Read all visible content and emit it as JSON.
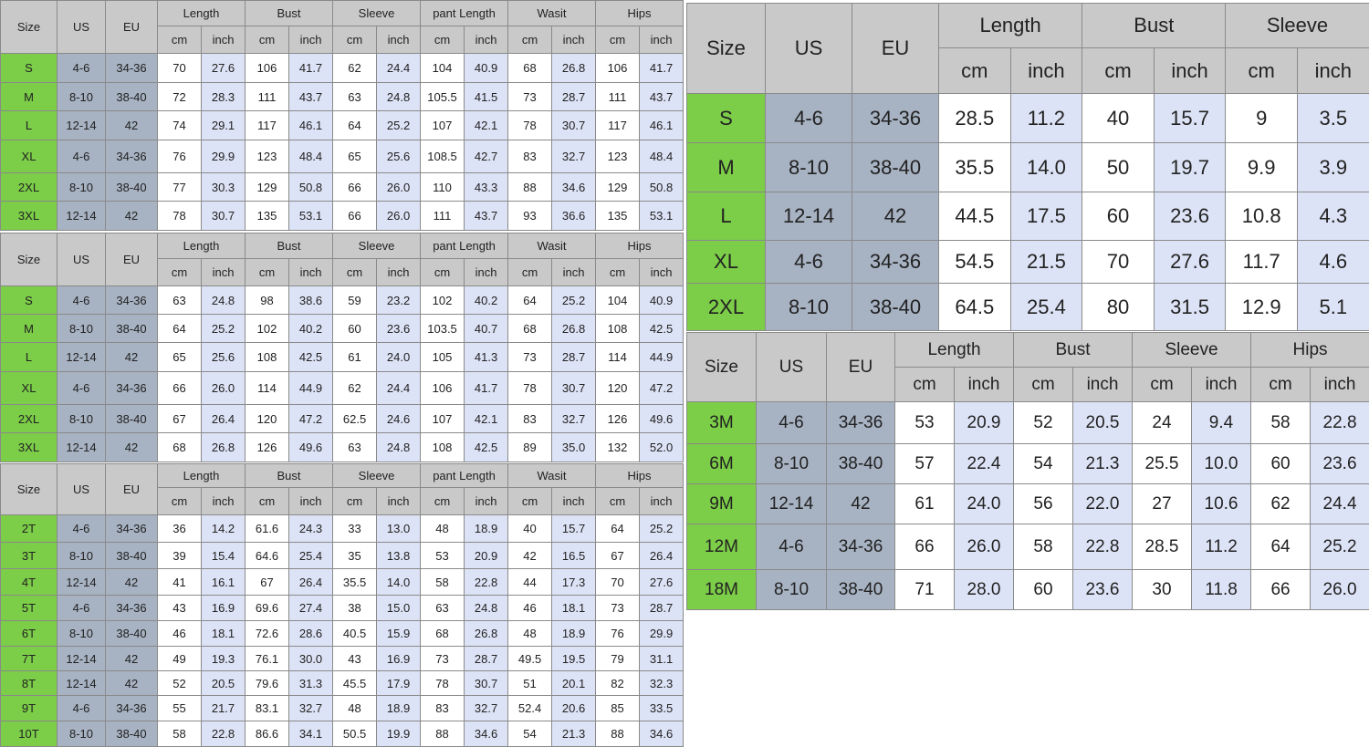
{
  "colors": {
    "header": "#c9c9c9",
    "size_column": "#7ccd48",
    "us_eu_columns": "#a7b2c2",
    "inch_columns": "#dde3f6"
  },
  "tables": [
    {
      "id": "adult-set-1",
      "head": {
        "size": "Size",
        "us": "US",
        "eu": "EU",
        "groups": [
          "Length",
          "Bust",
          "Sleeve",
          "pant Length",
          "Wasit",
          "Hips"
        ],
        "cm": "cm",
        "inch": "inch"
      },
      "rows": [
        [
          "S",
          "4-6",
          "34-36",
          "70",
          "27.6",
          "106",
          "41.7",
          "62",
          "24.4",
          "104",
          "40.9",
          "68",
          "26.8",
          "106",
          "41.7"
        ],
        [
          "M",
          "8-10",
          "38-40",
          "72",
          "28.3",
          "111",
          "43.7",
          "63",
          "24.8",
          "105.5",
          "41.5",
          "73",
          "28.7",
          "111",
          "43.7"
        ],
        [
          "L",
          "12-14",
          "42",
          "74",
          "29.1",
          "117",
          "46.1",
          "64",
          "25.2",
          "107",
          "42.1",
          "78",
          "30.7",
          "117",
          "46.1"
        ],
        [
          "XL",
          "4-6",
          "34-36",
          "76",
          "29.9",
          "123",
          "48.4",
          "65",
          "25.6",
          "108.5",
          "42.7",
          "83",
          "32.7",
          "123",
          "48.4"
        ],
        [
          "2XL",
          "8-10",
          "38-40",
          "77",
          "30.3",
          "129",
          "50.8",
          "66",
          "26.0",
          "110",
          "43.3",
          "88",
          "34.6",
          "129",
          "50.8"
        ],
        [
          "3XL",
          "12-14",
          "42",
          "78",
          "30.7",
          "135",
          "53.1",
          "66",
          "26.0",
          "111",
          "43.7",
          "93",
          "36.6",
          "135",
          "53.1"
        ]
      ]
    },
    {
      "id": "adult-set-2",
      "head": {
        "size": "Size",
        "us": "US",
        "eu": "EU",
        "groups": [
          "Length",
          "Bust",
          "Sleeve",
          "pant Length",
          "Wasit",
          "Hips"
        ],
        "cm": "cm",
        "inch": "inch"
      },
      "rows": [
        [
          "S",
          "4-6",
          "34-36",
          "63",
          "24.8",
          "98",
          "38.6",
          "59",
          "23.2",
          "102",
          "40.2",
          "64",
          "25.2",
          "104",
          "40.9"
        ],
        [
          "M",
          "8-10",
          "38-40",
          "64",
          "25.2",
          "102",
          "40.2",
          "60",
          "23.6",
          "103.5",
          "40.7",
          "68",
          "26.8",
          "108",
          "42.5"
        ],
        [
          "L",
          "12-14",
          "42",
          "65",
          "25.6",
          "108",
          "42.5",
          "61",
          "24.0",
          "105",
          "41.3",
          "73",
          "28.7",
          "114",
          "44.9"
        ],
        [
          "XL",
          "4-6",
          "34-36",
          "66",
          "26.0",
          "114",
          "44.9",
          "62",
          "24.4",
          "106",
          "41.7",
          "78",
          "30.7",
          "120",
          "47.2"
        ],
        [
          "2XL",
          "8-10",
          "38-40",
          "67",
          "26.4",
          "120",
          "47.2",
          "62.5",
          "24.6",
          "107",
          "42.1",
          "83",
          "32.7",
          "126",
          "49.6"
        ],
        [
          "3XL",
          "12-14",
          "42",
          "68",
          "26.8",
          "126",
          "49.6",
          "63",
          "24.8",
          "108",
          "42.5",
          "89",
          "35.0",
          "132",
          "52.0"
        ]
      ]
    },
    {
      "id": "kids-set",
      "head": {
        "size": "Size",
        "us": "US",
        "eu": "EU",
        "groups": [
          "Length",
          "Bust",
          "Sleeve",
          "pant Length",
          "Wasit",
          "Hips"
        ],
        "cm": "cm",
        "inch": "inch"
      },
      "rows": [
        [
          "2T",
          "4-6",
          "34-36",
          "36",
          "14.2",
          "61.6",
          "24.3",
          "33",
          "13.0",
          "48",
          "18.9",
          "40",
          "15.7",
          "64",
          "25.2"
        ],
        [
          "3T",
          "8-10",
          "38-40",
          "39",
          "15.4",
          "64.6",
          "25.4",
          "35",
          "13.8",
          "53",
          "20.9",
          "42",
          "16.5",
          "67",
          "26.4"
        ],
        [
          "4T",
          "12-14",
          "42",
          "41",
          "16.1",
          "67",
          "26.4",
          "35.5",
          "14.0",
          "58",
          "22.8",
          "44",
          "17.3",
          "70",
          "27.6"
        ],
        [
          "5T",
          "4-6",
          "34-36",
          "43",
          "16.9",
          "69.6",
          "27.4",
          "38",
          "15.0",
          "63",
          "24.8",
          "46",
          "18.1",
          "73",
          "28.7"
        ],
        [
          "6T",
          "8-10",
          "38-40",
          "46",
          "18.1",
          "72.6",
          "28.6",
          "40.5",
          "15.9",
          "68",
          "26.8",
          "48",
          "18.9",
          "76",
          "29.9"
        ],
        [
          "7T",
          "12-14",
          "42",
          "49",
          "19.3",
          "76.1",
          "30.0",
          "43",
          "16.9",
          "73",
          "28.7",
          "49.5",
          "19.5",
          "79",
          "31.1"
        ],
        [
          "8T",
          "12-14",
          "42",
          "52",
          "20.5",
          "79.6",
          "31.3",
          "45.5",
          "17.9",
          "78",
          "30.7",
          "51",
          "20.1",
          "82",
          "32.3"
        ],
        [
          "9T",
          "4-6",
          "34-36",
          "55",
          "21.7",
          "83.1",
          "32.7",
          "48",
          "18.9",
          "83",
          "32.7",
          "52.4",
          "20.6",
          "85",
          "33.5"
        ],
        [
          "10T",
          "8-10",
          "38-40",
          "58",
          "22.8",
          "86.6",
          "34.1",
          "50.5",
          "19.9",
          "88",
          "34.6",
          "54",
          "21.3",
          "88",
          "34.6"
        ]
      ]
    },
    {
      "id": "top-set",
      "head": {
        "size": "Size",
        "us": "US",
        "eu": "EU",
        "groups": [
          "Length",
          "Bust",
          "Sleeve"
        ],
        "cm": "cm",
        "inch": "inch"
      },
      "rows": [
        [
          "S",
          "4-6",
          "34-36",
          "28.5",
          "11.2",
          "40",
          "15.7",
          "9",
          "3.5"
        ],
        [
          "M",
          "8-10",
          "38-40",
          "35.5",
          "14.0",
          "50",
          "19.7",
          "9.9",
          "3.9"
        ],
        [
          "L",
          "12-14",
          "42",
          "44.5",
          "17.5",
          "60",
          "23.6",
          "10.8",
          "4.3"
        ],
        [
          "XL",
          "4-6",
          "34-36",
          "54.5",
          "21.5",
          "70",
          "27.6",
          "11.7",
          "4.6"
        ],
        [
          "2XL",
          "8-10",
          "38-40",
          "64.5",
          "25.4",
          "80",
          "31.5",
          "12.9",
          "5.1"
        ]
      ]
    },
    {
      "id": "baby-set",
      "head": {
        "size": "Size",
        "us": "US",
        "eu": "EU",
        "groups": [
          "Length",
          "Bust",
          "Sleeve",
          "Hips"
        ],
        "cm": "cm",
        "inch": "inch"
      },
      "rows": [
        [
          "3M",
          "4-6",
          "34-36",
          "53",
          "20.9",
          "52",
          "20.5",
          "24",
          "9.4",
          "58",
          "22.8"
        ],
        [
          "6M",
          "8-10",
          "38-40",
          "57",
          "22.4",
          "54",
          "21.3",
          "25.5",
          "10.0",
          "60",
          "23.6"
        ],
        [
          "9M",
          "12-14",
          "42",
          "61",
          "24.0",
          "56",
          "22.0",
          "27",
          "10.6",
          "62",
          "24.4"
        ],
        [
          "12M",
          "4-6",
          "34-36",
          "66",
          "26.0",
          "58",
          "22.8",
          "28.5",
          "11.2",
          "64",
          "25.2"
        ],
        [
          "18M",
          "8-10",
          "38-40",
          "71",
          "28.0",
          "60",
          "23.6",
          "30",
          "11.8",
          "66",
          "26.0"
        ]
      ]
    }
  ]
}
